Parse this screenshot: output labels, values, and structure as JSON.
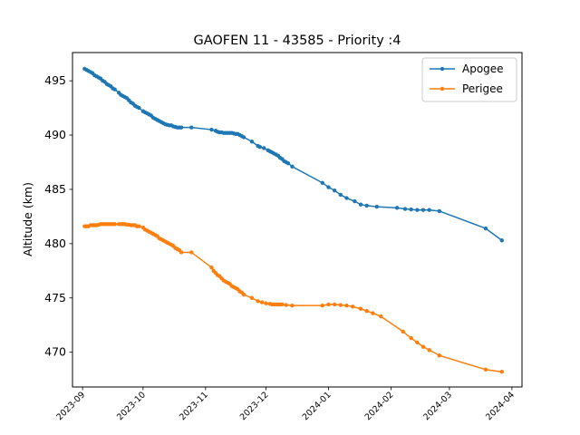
{
  "chart_data": {
    "type": "line",
    "title": "GAOFEN 11 - 43585 - Priority :4",
    "xlabel": "",
    "ylabel": "Altitude (km)",
    "xlim": [
      "2023-08-27",
      "2024-04-06"
    ],
    "ylim": [
      466.8,
      497.6
    ],
    "x_ticks": [
      "2023-09",
      "2023-10",
      "2023-11",
      "2023-12",
      "2024-01",
      "2024-02",
      "2024-03",
      "2024-04"
    ],
    "y_ticks": [
      470,
      475,
      480,
      485,
      490,
      495
    ],
    "grid": false,
    "legend_position": "top-right",
    "series": [
      {
        "name": "Apogee",
        "color": "#1f77b4",
        "points": [
          [
            "2023-09-02",
            496.1
          ],
          [
            "2023-09-03",
            496.0
          ],
          [
            "2023-09-04",
            495.9
          ],
          [
            "2023-09-05",
            495.8
          ],
          [
            "2023-09-06",
            495.7
          ],
          [
            "2023-09-07",
            495.5
          ],
          [
            "2023-09-08",
            495.4
          ],
          [
            "2023-09-09",
            495.3
          ],
          [
            "2023-09-10",
            495.2
          ],
          [
            "2023-09-11",
            495.0
          ],
          [
            "2023-09-12",
            494.9
          ],
          [
            "2023-09-13",
            494.7
          ],
          [
            "2023-09-14",
            494.6
          ],
          [
            "2023-09-15",
            494.5
          ],
          [
            "2023-09-16",
            494.3
          ],
          [
            "2023-09-17",
            494.2
          ],
          [
            "2023-09-19",
            493.9
          ],
          [
            "2023-09-20",
            493.7
          ],
          [
            "2023-09-21",
            493.6
          ],
          [
            "2023-09-22",
            493.5
          ],
          [
            "2023-09-23",
            493.4
          ],
          [
            "2023-09-24",
            493.2
          ],
          [
            "2023-09-25",
            493.0
          ],
          [
            "2023-09-26",
            492.9
          ],
          [
            "2023-09-27",
            492.7
          ],
          [
            "2023-09-28",
            492.6
          ],
          [
            "2023-09-29",
            492.5
          ],
          [
            "2023-10-01",
            492.2
          ],
          [
            "2023-10-02",
            492.1
          ],
          [
            "2023-10-03",
            492.0
          ],
          [
            "2023-10-04",
            491.9
          ],
          [
            "2023-10-05",
            491.8
          ],
          [
            "2023-10-06",
            491.6
          ],
          [
            "2023-10-07",
            491.5
          ],
          [
            "2023-10-08",
            491.4
          ],
          [
            "2023-10-09",
            491.3
          ],
          [
            "2023-10-10",
            491.2
          ],
          [
            "2023-10-11",
            491.1
          ],
          [
            "2023-10-12",
            491.0
          ],
          [
            "2023-10-13",
            490.95
          ],
          [
            "2023-10-14",
            490.9
          ],
          [
            "2023-10-15",
            490.9
          ],
          [
            "2023-10-16",
            490.8
          ],
          [
            "2023-10-17",
            490.75
          ],
          [
            "2023-10-18",
            490.7
          ],
          [
            "2023-10-19",
            490.7
          ],
          [
            "2023-10-20",
            490.7
          ],
          [
            "2023-10-25",
            490.7
          ],
          [
            "2023-11-04",
            490.5
          ],
          [
            "2023-11-06",
            490.4
          ],
          [
            "2023-11-07",
            490.3
          ],
          [
            "2023-11-08",
            490.25
          ],
          [
            "2023-11-09",
            490.25
          ],
          [
            "2023-11-10",
            490.2
          ],
          [
            "2023-11-11",
            490.2
          ],
          [
            "2023-11-12",
            490.2
          ],
          [
            "2023-11-13",
            490.2
          ],
          [
            "2023-11-14",
            490.2
          ],
          [
            "2023-11-15",
            490.15
          ],
          [
            "2023-11-16",
            490.1
          ],
          [
            "2023-11-17",
            490.1
          ],
          [
            "2023-11-18",
            490.0
          ],
          [
            "2023-11-19",
            489.9
          ],
          [
            "2023-11-20",
            489.8
          ],
          [
            "2023-11-24",
            489.4
          ],
          [
            "2023-11-27",
            489.0
          ],
          [
            "2023-11-28",
            488.9
          ],
          [
            "2023-11-30",
            488.8
          ],
          [
            "2023-12-02",
            488.6
          ],
          [
            "2023-12-03",
            488.5
          ],
          [
            "2023-12-04",
            488.4
          ],
          [
            "2023-12-05",
            488.3
          ],
          [
            "2023-12-06",
            488.2
          ],
          [
            "2023-12-07",
            488.1
          ],
          [
            "2023-12-08",
            487.9
          ],
          [
            "2023-12-09",
            487.8
          ],
          [
            "2023-12-10",
            487.6
          ],
          [
            "2023-12-11",
            487.5
          ],
          [
            "2023-12-12",
            487.4
          ],
          [
            "2023-12-14",
            487.1
          ],
          [
            "2023-12-29",
            485.6
          ],
          [
            "2024-01-01",
            485.2
          ],
          [
            "2024-01-04",
            484.9
          ],
          [
            "2024-01-07",
            484.5
          ],
          [
            "2024-01-10",
            484.2
          ],
          [
            "2024-01-14",
            483.9
          ],
          [
            "2024-01-17",
            483.6
          ],
          [
            "2024-01-20",
            483.5
          ],
          [
            "2024-01-25",
            483.4
          ],
          [
            "2024-02-04",
            483.3
          ],
          [
            "2024-02-08",
            483.2
          ],
          [
            "2024-02-11",
            483.15
          ],
          [
            "2024-02-14",
            483.1
          ],
          [
            "2024-02-17",
            483.1
          ],
          [
            "2024-02-20",
            483.1
          ],
          [
            "2024-02-25",
            483.0
          ],
          [
            "2024-03-19",
            481.4
          ],
          [
            "2024-03-27",
            480.3
          ]
        ]
      },
      {
        "name": "Perigee",
        "color": "#ff7f0e",
        "points": [
          [
            "2023-09-02",
            481.6
          ],
          [
            "2023-09-03",
            481.6
          ],
          [
            "2023-09-04",
            481.6
          ],
          [
            "2023-09-05",
            481.7
          ],
          [
            "2023-09-06",
            481.7
          ],
          [
            "2023-09-07",
            481.7
          ],
          [
            "2023-09-08",
            481.7
          ],
          [
            "2023-09-09",
            481.75
          ],
          [
            "2023-09-10",
            481.8
          ],
          [
            "2023-09-11",
            481.8
          ],
          [
            "2023-09-12",
            481.8
          ],
          [
            "2023-09-13",
            481.8
          ],
          [
            "2023-09-14",
            481.8
          ],
          [
            "2023-09-15",
            481.8
          ],
          [
            "2023-09-16",
            481.8
          ],
          [
            "2023-09-17",
            481.8
          ],
          [
            "2023-09-19",
            481.8
          ],
          [
            "2023-09-20",
            481.8
          ],
          [
            "2023-09-21",
            481.8
          ],
          [
            "2023-09-22",
            481.8
          ],
          [
            "2023-09-23",
            481.75
          ],
          [
            "2023-09-24",
            481.75
          ],
          [
            "2023-09-25",
            481.7
          ],
          [
            "2023-09-26",
            481.7
          ],
          [
            "2023-09-27",
            481.7
          ],
          [
            "2023-09-28",
            481.6
          ],
          [
            "2023-09-29",
            481.6
          ],
          [
            "2023-10-01",
            481.5
          ],
          [
            "2023-10-02",
            481.3
          ],
          [
            "2023-10-03",
            481.2
          ],
          [
            "2023-10-04",
            481.1
          ],
          [
            "2023-10-05",
            481.0
          ],
          [
            "2023-10-06",
            480.9
          ],
          [
            "2023-10-07",
            480.8
          ],
          [
            "2023-10-08",
            480.7
          ],
          [
            "2023-10-09",
            480.5
          ],
          [
            "2023-10-10",
            480.4
          ],
          [
            "2023-10-11",
            480.3
          ],
          [
            "2023-10-12",
            480.2
          ],
          [
            "2023-10-13",
            480.1
          ],
          [
            "2023-10-14",
            480.0
          ],
          [
            "2023-10-15",
            479.9
          ],
          [
            "2023-10-16",
            479.8
          ],
          [
            "2023-10-17",
            479.6
          ],
          [
            "2023-10-18",
            479.5
          ],
          [
            "2023-10-19",
            479.4
          ],
          [
            "2023-10-20",
            479.2
          ],
          [
            "2023-10-25",
            479.2
          ],
          [
            "2023-11-04",
            477.8
          ],
          [
            "2023-11-05",
            477.5
          ],
          [
            "2023-11-06",
            477.3
          ],
          [
            "2023-11-07",
            477.1
          ],
          [
            "2023-11-08",
            477.0
          ],
          [
            "2023-11-09",
            476.8
          ],
          [
            "2023-11-10",
            476.6
          ],
          [
            "2023-11-11",
            476.5
          ],
          [
            "2023-11-12",
            476.4
          ],
          [
            "2023-11-13",
            476.3
          ],
          [
            "2023-11-14",
            476.1
          ],
          [
            "2023-11-15",
            476.0
          ],
          [
            "2023-11-16",
            475.9
          ],
          [
            "2023-11-17",
            475.8
          ],
          [
            "2023-11-18",
            475.6
          ],
          [
            "2023-11-19",
            475.5
          ],
          [
            "2023-11-20",
            475.3
          ],
          [
            "2023-11-24",
            475.0
          ],
          [
            "2023-11-27",
            474.7
          ],
          [
            "2023-11-29",
            474.6
          ],
          [
            "2023-12-01",
            474.5
          ],
          [
            "2023-12-03",
            474.45
          ],
          [
            "2023-12-04",
            474.4
          ],
          [
            "2023-12-05",
            474.4
          ],
          [
            "2023-12-06",
            474.4
          ],
          [
            "2023-12-07",
            474.4
          ],
          [
            "2023-12-08",
            474.4
          ],
          [
            "2023-12-09",
            474.4
          ],
          [
            "2023-12-11",
            474.35
          ],
          [
            "2023-12-14",
            474.3
          ],
          [
            "2023-12-29",
            474.3
          ],
          [
            "2024-01-01",
            474.4
          ],
          [
            "2024-01-04",
            474.4
          ],
          [
            "2024-01-07",
            474.35
          ],
          [
            "2024-01-10",
            474.3
          ],
          [
            "2024-01-13",
            474.2
          ],
          [
            "2024-01-17",
            474.0
          ],
          [
            "2024-01-20",
            473.8
          ],
          [
            "2024-01-23",
            473.6
          ],
          [
            "2024-01-27",
            473.3
          ],
          [
            "2024-02-07",
            471.9
          ],
          [
            "2024-02-11",
            471.3
          ],
          [
            "2024-02-14",
            470.9
          ],
          [
            "2024-02-17",
            470.5
          ],
          [
            "2024-02-20",
            470.2
          ],
          [
            "2024-02-25",
            469.7
          ],
          [
            "2024-03-19",
            468.4
          ],
          [
            "2024-03-27",
            468.2
          ]
        ]
      }
    ]
  }
}
